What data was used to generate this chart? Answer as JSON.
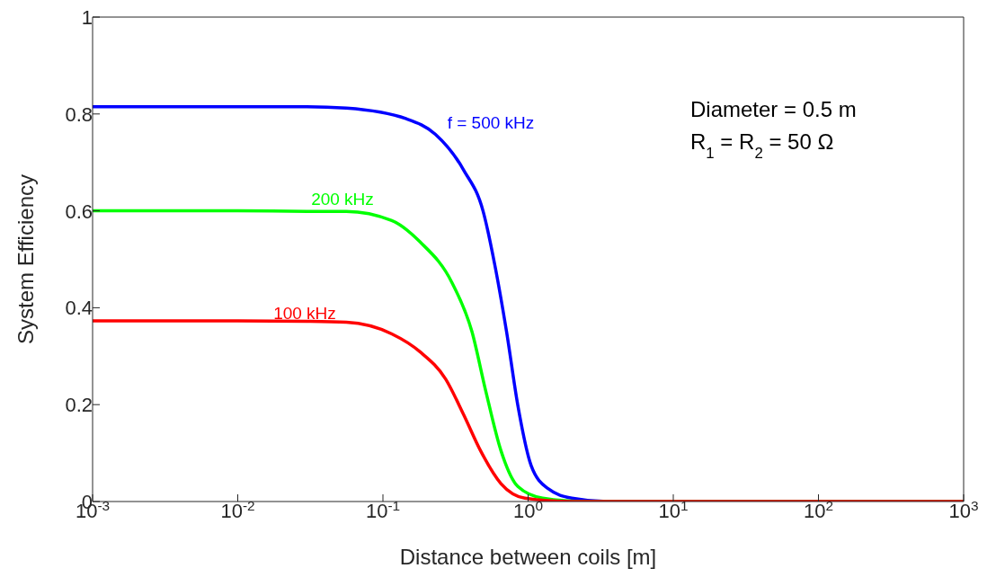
{
  "chart_data": {
    "type": "line",
    "xlabel": "Distance between coils [m]",
    "ylabel": "System Efficiency",
    "log": "x",
    "grid": false,
    "legend": false,
    "marker": "none",
    "line_style": "solid",
    "xlim": [
      0.001,
      1000
    ],
    "xticks": [
      {
        "value": 0.001,
        "label": "10$^{-3}$"
      },
      {
        "value": 0.01,
        "label": "10$^{-2}$"
      },
      {
        "value": 0.1,
        "label": "10$^{-1}$"
      },
      {
        "value": 1,
        "label": "10$^{0}$"
      },
      {
        "value": 10,
        "label": "10$^{1}$"
      },
      {
        "value": 100,
        "label": "10$^{2}$"
      },
      {
        "value": 1000,
        "label": "10$^{3}$"
      }
    ],
    "ylim": [
      0,
      1
    ],
    "yticks": [
      0,
      0.2,
      0.4,
      0.6,
      0.8,
      1
    ],
    "series": [
      {
        "name": "f = 500 kHz",
        "color": "#0000ff",
        "x": [
          0.001,
          0.01,
          0.03,
          0.056,
          0.145,
          0.23,
          0.36,
          0.49,
          0.59,
          0.71,
          0.85,
          1.05,
          1.38,
          2.0,
          3.5,
          10,
          1000
        ],
        "values": [
          0.815,
          0.815,
          0.815,
          0.812,
          0.79,
          0.758,
          0.684,
          0.599,
          0.488,
          0.351,
          0.198,
          0.074,
          0.026,
          0.007,
          0,
          0,
          0
        ]
      },
      {
        "name": "200 kHz",
        "color": "#00ff00",
        "x": [
          0.001,
          0.01,
          0.03,
          0.056,
          0.115,
          0.18,
          0.3,
          0.41,
          0.51,
          0.65,
          0.85,
          1.26,
          2.5,
          10,
          1000
        ],
        "values": [
          0.6,
          0.6,
          0.599,
          0.599,
          0.58,
          0.536,
          0.451,
          0.351,
          0.229,
          0.105,
          0.031,
          0.007,
          0,
          0,
          0
        ]
      },
      {
        "name": "100 kHz",
        "color": "#ff0000",
        "x": [
          0.001,
          0.01,
          0.03,
          0.056,
          0.115,
          0.18,
          0.27,
          0.36,
          0.47,
          0.65,
          0.95,
          2.0,
          10,
          1000
        ],
        "values": [
          0.373,
          0.373,
          0.372,
          0.37,
          0.346,
          0.309,
          0.253,
          0.179,
          0.105,
          0.037,
          0.007,
          0,
          0,
          0
        ]
      }
    ],
    "annotations": [
      "Diameter = 0.5 m",
      "R$_{1}$ = R$_{2}$ = 50 Ω"
    ]
  }
}
